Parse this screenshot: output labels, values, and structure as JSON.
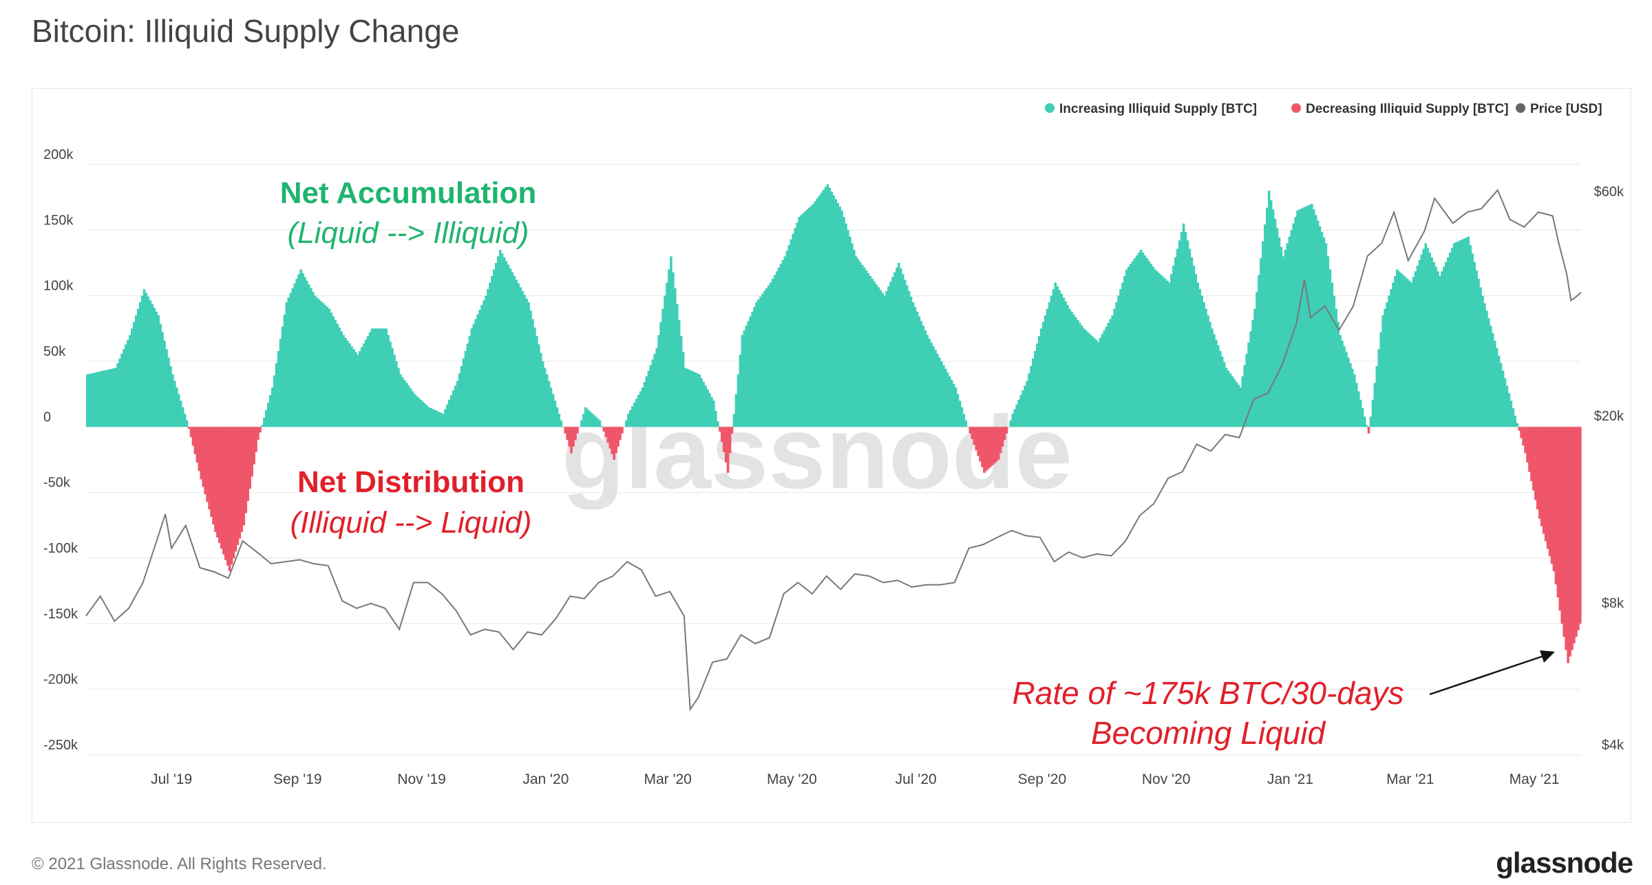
{
  "title": "Bitcoin: Illiquid Supply Change",
  "footer": {
    "copyright": "© 2021 Glassnode. All Rights Reserved.",
    "logo": "glassnode"
  },
  "watermark": "glassnode",
  "colors": {
    "increasing": "#3ecfb5",
    "decreasing": "#f0566a",
    "price": "#777777",
    "accumulation_text": "#1fb46e",
    "distribution_text": "#e0202a",
    "grid": "#eeeeee"
  },
  "annotations": {
    "accumulation_title": "Net Accumulation",
    "accumulation_sub": "(Liquid --> Illiquid)",
    "distribution_title": "Net Distribution",
    "distribution_sub": "(Illiquid --> Liquid)",
    "rate_line1": "Rate of ~175k BTC/30-days",
    "rate_line2": "Becoming Liquid"
  },
  "chart_data": {
    "type": "bar",
    "title": "Bitcoin: Illiquid Supply Change",
    "legend_position": "top-right",
    "grid": true,
    "legend": [
      "Increasing Illiquid Supply [BTC]",
      "Decreasing Illiquid Supply [BTC]",
      "Price [USD]"
    ],
    "left_axis": {
      "ylim": [
        -250000,
        200000
      ],
      "ticks": [
        200000,
        150000,
        100000,
        50000,
        0,
        -50000,
        -100000,
        -150000,
        -200000,
        -250000
      ],
      "tick_labels": [
        "200k",
        "150k",
        "100k",
        "50k",
        "0",
        "-50k",
        "-100k",
        "-150k",
        "-200k",
        "-250k"
      ]
    },
    "right_axis": {
      "scale": "log",
      "ylim": [
        4000,
        72000
      ],
      "ticks": [
        60000,
        20000,
        8000,
        4000
      ],
      "tick_labels": [
        "$60k",
        "$20k",
        "$8k",
        "$4k"
      ]
    },
    "x_axis": {
      "date_range": [
        "2019-05-20",
        "2021-05-24"
      ],
      "ticks": [
        "2019-07-01",
        "2019-09-01",
        "2019-11-01",
        "2020-01-01",
        "2020-03-01",
        "2020-05-01",
        "2020-07-01",
        "2020-09-01",
        "2020-11-01",
        "2021-01-01",
        "2021-03-01",
        "2021-05-01"
      ],
      "tick_labels": [
        "Jul '19",
        "Sep '19",
        "Nov '19",
        "Jan '20",
        "Mar '20",
        "May '20",
        "Jul '20",
        "Sep '20",
        "Nov '20",
        "Jan '21",
        "Mar '21",
        "May '21"
      ]
    },
    "series": [
      {
        "name": "Increasing Illiquid Supply [BTC] / Decreasing Illiquid Supply [BTC]",
        "kind": "bar",
        "points": [
          [
            "2019-05-20",
            40000
          ],
          [
            "2019-06-03",
            45000
          ],
          [
            "2019-06-10",
            70000
          ],
          [
            "2019-06-17",
            105000
          ],
          [
            "2019-06-24",
            85000
          ],
          [
            "2019-07-01",
            40000
          ],
          [
            "2019-07-08",
            5000
          ],
          [
            "2019-07-15",
            -40000
          ],
          [
            "2019-07-22",
            -80000
          ],
          [
            "2019-07-29",
            -110000
          ],
          [
            "2019-08-05",
            -75000
          ],
          [
            "2019-08-12",
            -10000
          ],
          [
            "2019-08-19",
            30000
          ],
          [
            "2019-08-26",
            95000
          ],
          [
            "2019-09-02",
            120000
          ],
          [
            "2019-09-09",
            100000
          ],
          [
            "2019-09-16",
            90000
          ],
          [
            "2019-09-23",
            70000
          ],
          [
            "2019-09-30",
            55000
          ],
          [
            "2019-10-07",
            75000
          ],
          [
            "2019-10-14",
            75000
          ],
          [
            "2019-10-21",
            40000
          ],
          [
            "2019-10-28",
            25000
          ],
          [
            "2019-11-04",
            15000
          ],
          [
            "2019-11-11",
            10000
          ],
          [
            "2019-11-18",
            35000
          ],
          [
            "2019-11-25",
            75000
          ],
          [
            "2019-12-02",
            100000
          ],
          [
            "2019-12-09",
            135000
          ],
          [
            "2019-12-16",
            115000
          ],
          [
            "2019-12-23",
            95000
          ],
          [
            "2019-12-30",
            50000
          ],
          [
            "2020-01-06",
            15000
          ],
          [
            "2020-01-13",
            -20000
          ],
          [
            "2020-01-20",
            15000
          ],
          [
            "2020-01-27",
            5000
          ],
          [
            "2020-02-03",
            -25000
          ],
          [
            "2020-02-10",
            10000
          ],
          [
            "2020-02-17",
            30000
          ],
          [
            "2020-02-24",
            60000
          ],
          [
            "2020-03-02",
            130000
          ],
          [
            "2020-03-09",
            45000
          ],
          [
            "2020-03-16",
            40000
          ],
          [
            "2020-03-23",
            20000
          ],
          [
            "2020-03-30",
            -35000
          ],
          [
            "2020-04-06",
            70000
          ],
          [
            "2020-04-13",
            95000
          ],
          [
            "2020-04-20",
            110000
          ],
          [
            "2020-04-27",
            130000
          ],
          [
            "2020-05-04",
            160000
          ],
          [
            "2020-05-11",
            170000
          ],
          [
            "2020-05-18",
            185000
          ],
          [
            "2020-05-25",
            165000
          ],
          [
            "2020-06-01",
            130000
          ],
          [
            "2020-06-08",
            115000
          ],
          [
            "2020-06-15",
            100000
          ],
          [
            "2020-06-22",
            125000
          ],
          [
            "2020-06-29",
            95000
          ],
          [
            "2020-07-06",
            70000
          ],
          [
            "2020-07-13",
            50000
          ],
          [
            "2020-07-20",
            30000
          ],
          [
            "2020-07-27",
            -5000
          ],
          [
            "2020-08-03",
            -35000
          ],
          [
            "2020-08-10",
            -25000
          ],
          [
            "2020-08-17",
            10000
          ],
          [
            "2020-08-24",
            35000
          ],
          [
            "2020-08-31",
            75000
          ],
          [
            "2020-09-07",
            110000
          ],
          [
            "2020-09-14",
            90000
          ],
          [
            "2020-09-21",
            75000
          ],
          [
            "2020-09-28",
            65000
          ],
          [
            "2020-10-05",
            85000
          ],
          [
            "2020-10-12",
            120000
          ],
          [
            "2020-10-19",
            135000
          ],
          [
            "2020-10-26",
            120000
          ],
          [
            "2020-11-02",
            110000
          ],
          [
            "2020-11-09",
            155000
          ],
          [
            "2020-11-16",
            110000
          ],
          [
            "2020-11-23",
            75000
          ],
          [
            "2020-11-30",
            45000
          ],
          [
            "2020-12-07",
            30000
          ],
          [
            "2020-12-14",
            90000
          ],
          [
            "2020-12-21",
            180000
          ],
          [
            "2020-12-28",
            130000
          ],
          [
            "2021-01-04",
            165000
          ],
          [
            "2021-01-11",
            170000
          ],
          [
            "2021-01-18",
            140000
          ],
          [
            "2021-01-25",
            70000
          ],
          [
            "2021-02-01",
            40000
          ],
          [
            "2021-02-08",
            -5000
          ],
          [
            "2021-02-15",
            85000
          ],
          [
            "2021-02-22",
            120000
          ],
          [
            "2021-03-01",
            110000
          ],
          [
            "2021-03-08",
            140000
          ],
          [
            "2021-03-15",
            115000
          ],
          [
            "2021-03-22",
            140000
          ],
          [
            "2021-03-29",
            145000
          ],
          [
            "2021-04-05",
            100000
          ],
          [
            "2021-04-12",
            60000
          ],
          [
            "2021-04-19",
            20000
          ],
          [
            "2021-04-26",
            -20000
          ],
          [
            "2021-05-03",
            -70000
          ],
          [
            "2021-05-10",
            -110000
          ],
          [
            "2021-05-17",
            -180000
          ],
          [
            "2021-05-24",
            -145000
          ]
        ]
      },
      {
        "name": "Price [USD]",
        "kind": "line",
        "points": [
          [
            "2019-05-20",
            7900
          ],
          [
            "2019-05-27",
            8700
          ],
          [
            "2019-06-03",
            7700
          ],
          [
            "2019-06-10",
            8200
          ],
          [
            "2019-06-17",
            9300
          ],
          [
            "2019-06-24",
            11500
          ],
          [
            "2019-06-28",
            13000
          ],
          [
            "2019-07-01",
            11000
          ],
          [
            "2019-07-08",
            12300
          ],
          [
            "2019-07-15",
            10000
          ],
          [
            "2019-07-22",
            9800
          ],
          [
            "2019-07-29",
            9500
          ],
          [
            "2019-08-05",
            11400
          ],
          [
            "2019-08-12",
            10800
          ],
          [
            "2019-08-19",
            10200
          ],
          [
            "2019-08-26",
            10300
          ],
          [
            "2019-09-02",
            10400
          ],
          [
            "2019-09-09",
            10200
          ],
          [
            "2019-09-16",
            10100
          ],
          [
            "2019-09-23",
            8500
          ],
          [
            "2019-09-30",
            8200
          ],
          [
            "2019-10-07",
            8400
          ],
          [
            "2019-10-14",
            8200
          ],
          [
            "2019-10-21",
            7400
          ],
          [
            "2019-10-28",
            9300
          ],
          [
            "2019-11-04",
            9300
          ],
          [
            "2019-11-11",
            8800
          ],
          [
            "2019-11-18",
            8100
          ],
          [
            "2019-11-25",
            7200
          ],
          [
            "2019-12-02",
            7400
          ],
          [
            "2019-12-09",
            7300
          ],
          [
            "2019-12-16",
            6700
          ],
          [
            "2019-12-23",
            7300
          ],
          [
            "2019-12-30",
            7200
          ],
          [
            "2020-01-06",
            7800
          ],
          [
            "2020-01-13",
            8700
          ],
          [
            "2020-01-20",
            8600
          ],
          [
            "2020-01-27",
            9300
          ],
          [
            "2020-02-03",
            9600
          ],
          [
            "2020-02-10",
            10300
          ],
          [
            "2020-02-17",
            9900
          ],
          [
            "2020-02-24",
            8700
          ],
          [
            "2020-03-02",
            8900
          ],
          [
            "2020-03-09",
            7900
          ],
          [
            "2020-03-12",
            5000
          ],
          [
            "2020-03-16",
            5300
          ],
          [
            "2020-03-23",
            6300
          ],
          [
            "2020-03-30",
            6400
          ],
          [
            "2020-04-06",
            7200
          ],
          [
            "2020-04-13",
            6900
          ],
          [
            "2020-04-20",
            7100
          ],
          [
            "2020-04-27",
            8800
          ],
          [
            "2020-05-04",
            9300
          ],
          [
            "2020-05-11",
            8800
          ],
          [
            "2020-05-18",
            9600
          ],
          [
            "2020-05-25",
            9000
          ],
          [
            "2020-06-01",
            9700
          ],
          [
            "2020-06-08",
            9600
          ],
          [
            "2020-06-15",
            9300
          ],
          [
            "2020-06-22",
            9400
          ],
          [
            "2020-06-29",
            9100
          ],
          [
            "2020-07-06",
            9200
          ],
          [
            "2020-07-13",
            9200
          ],
          [
            "2020-07-20",
            9300
          ],
          [
            "2020-07-27",
            11000
          ],
          [
            "2020-08-03",
            11200
          ],
          [
            "2020-08-10",
            11600
          ],
          [
            "2020-08-17",
            12000
          ],
          [
            "2020-08-24",
            11700
          ],
          [
            "2020-08-31",
            11600
          ],
          [
            "2020-09-07",
            10300
          ],
          [
            "2020-09-14",
            10800
          ],
          [
            "2020-09-21",
            10500
          ],
          [
            "2020-09-28",
            10700
          ],
          [
            "2020-10-05",
            10600
          ],
          [
            "2020-10-12",
            11400
          ],
          [
            "2020-10-19",
            12900
          ],
          [
            "2020-10-26",
            13700
          ],
          [
            "2020-11-02",
            15500
          ],
          [
            "2020-11-09",
            16000
          ],
          [
            "2020-11-16",
            18300
          ],
          [
            "2020-11-23",
            17700
          ],
          [
            "2020-11-30",
            19200
          ],
          [
            "2020-12-07",
            18900
          ],
          [
            "2020-12-14",
            22800
          ],
          [
            "2020-12-21",
            23500
          ],
          [
            "2020-12-28",
            27000
          ],
          [
            "2021-01-04",
            33000
          ],
          [
            "2021-01-08",
            41000
          ],
          [
            "2021-01-11",
            34000
          ],
          [
            "2021-01-18",
            36000
          ],
          [
            "2021-01-25",
            32000
          ],
          [
            "2021-02-01",
            36000
          ],
          [
            "2021-02-08",
            46000
          ],
          [
            "2021-02-15",
            49000
          ],
          [
            "2021-02-21",
            57000
          ],
          [
            "2021-02-28",
            45000
          ],
          [
            "2021-03-08",
            52000
          ],
          [
            "2021-03-13",
            61000
          ],
          [
            "2021-03-22",
            54000
          ],
          [
            "2021-03-29",
            57000
          ],
          [
            "2021-04-05",
            58000
          ],
          [
            "2021-04-13",
            63500
          ],
          [
            "2021-04-19",
            55000
          ],
          [
            "2021-04-26",
            53000
          ],
          [
            "2021-05-03",
            57000
          ],
          [
            "2021-05-10",
            56000
          ],
          [
            "2021-05-13",
            49000
          ],
          [
            "2021-05-17",
            42000
          ],
          [
            "2021-05-19",
            37000
          ],
          [
            "2021-05-21",
            37500
          ],
          [
            "2021-05-24",
            38500
          ]
        ]
      }
    ]
  }
}
